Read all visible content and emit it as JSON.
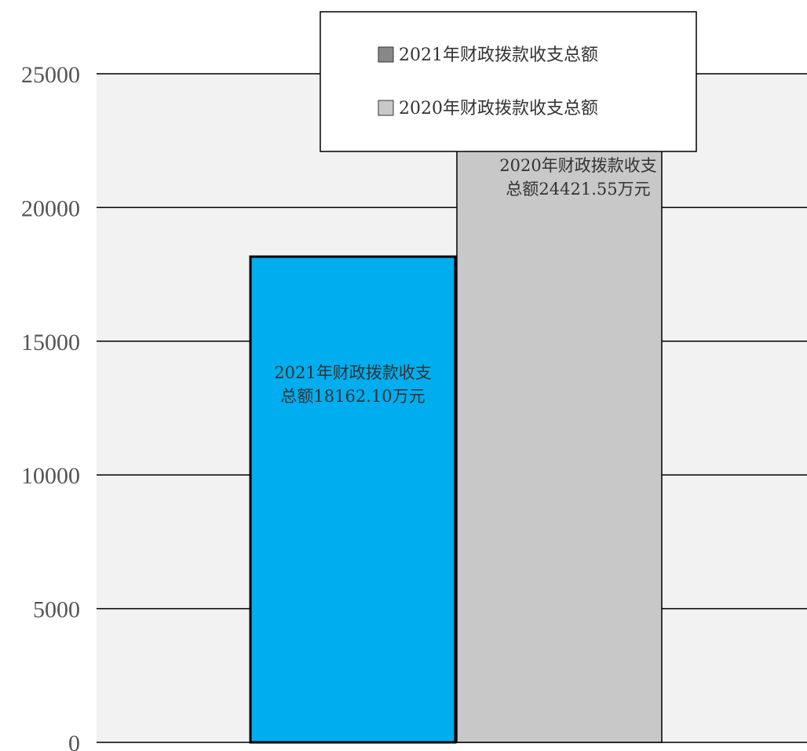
{
  "chart_data": {
    "type": "bar",
    "categories": [
      "2021年财政拨款收支总额",
      "2020年财政拨款收支总额"
    ],
    "values": [
      18162.1,
      24421.55
    ],
    "bar_labels": [
      [
        "2021年财政拨款收支",
        "总额18162.10万元"
      ],
      [
        "2020年财政拨款收支",
        "总额24421.55万元"
      ]
    ],
    "ylim": [
      0,
      25000
    ],
    "yticks": [
      0,
      5000,
      10000,
      15000,
      20000,
      25000
    ],
    "ytick_labels": [
      "0",
      "5000",
      "10000",
      "15000",
      "20000",
      "25000"
    ],
    "grid": true,
    "legend": {
      "placement": "top-center",
      "entries": [
        {
          "label": "2021年财政拨款收支总额",
          "swatch": "#888888"
        },
        {
          "label": "2020年财政拨款收支总额",
          "swatch": "#c8c8c8"
        }
      ]
    },
    "colors": {
      "bar_2021": "#00adef",
      "bar_2020": "#c8c8c8",
      "plot_bg": "#f2f2f2",
      "grid": "#000000"
    }
  }
}
